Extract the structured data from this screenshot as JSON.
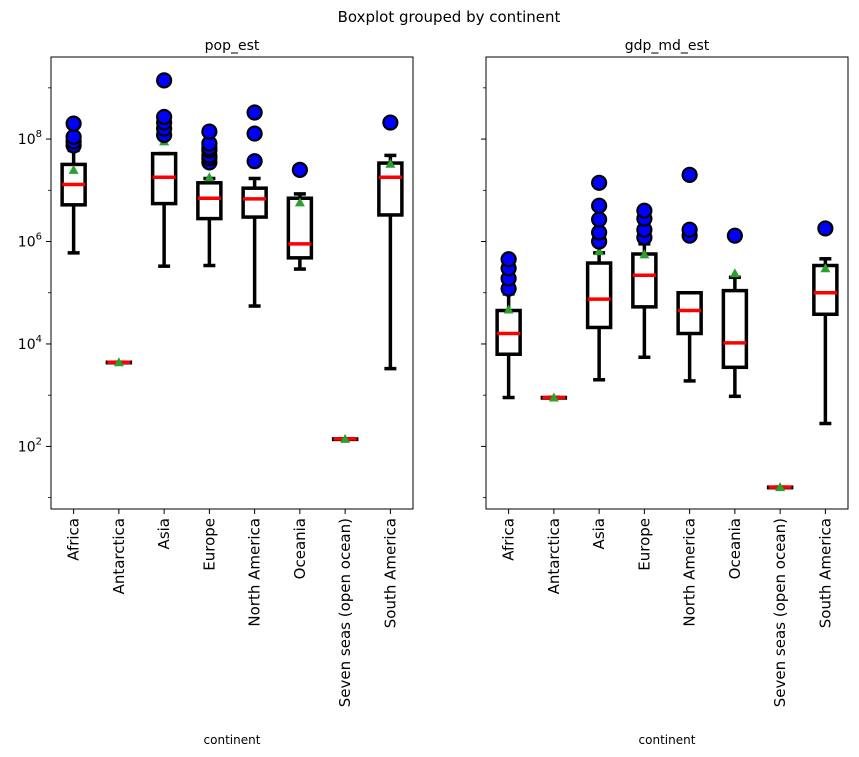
{
  "figure": {
    "suptitle": "Boxplot grouped by continent"
  },
  "chart_data": [
    {
      "type": "boxplot",
      "title": "pop_est",
      "xlabel": "continent",
      "ylabel": "",
      "yscale": "log",
      "ylim": [
        6,
        4000000000
      ],
      "yticks": [
        100,
        10000,
        1000000,
        100000000
      ],
      "ytick_labels": [
        {
          "base": "10",
          "exp": "2"
        },
        {
          "base": "10",
          "exp": "4"
        },
        {
          "base": "10",
          "exp": "6"
        },
        {
          "base": "10",
          "exp": "8"
        }
      ],
      "grid": false,
      "categories": [
        "Africa",
        "Antarctica",
        "Asia",
        "Europe",
        "North America",
        "Oceania",
        "Seven seas (open ocean)",
        "South America"
      ],
      "boxes": [
        {
          "whislo": 600000,
          "q1": 5200000,
          "med": 13000000,
          "q3": 32000000,
          "whishi": 60000000,
          "mean": 25000000,
          "fliers": [
            75000000,
            90000000,
            110000000,
            200000000
          ]
        },
        {
          "whislo": 4400,
          "q1": 4400,
          "med": 4400,
          "q3": 4400,
          "whishi": 4400,
          "mean": 4400,
          "fliers": []
        },
        {
          "whislo": 330000,
          "q1": 5500000,
          "med": 18000000,
          "q3": 52000000,
          "whishi": 52000000,
          "mean": 90000000,
          "fliers": [
            120000000,
            160000000,
            210000000,
            270000000,
            1400000000
          ]
        },
        {
          "whislo": 340000,
          "q1": 2800000,
          "med": 7000000,
          "q3": 14000000,
          "whishi": 17000000,
          "mean": 18000000,
          "fliers": [
            35000000,
            42000000,
            48000000,
            60000000,
            67000000,
            82000000,
            140000000
          ]
        },
        {
          "whislo": 55000,
          "q1": 3000000,
          "med": 6800000,
          "q3": 11000000,
          "whishi": 17000000,
          "mean": 32000000,
          "fliers": [
            37000000,
            128000000,
            330000000
          ]
        },
        {
          "whislo": 290000,
          "q1": 480000,
          "med": 900000,
          "q3": 7000000,
          "whishi": 8500000,
          "mean": 5800000,
          "fliers": [
            25000000
          ]
        },
        {
          "whislo": 140,
          "q1": 140,
          "med": 140,
          "q3": 140,
          "whishi": 140,
          "mean": 140,
          "fliers": []
        },
        {
          "whislo": 3300,
          "q1": 3300000,
          "med": 18000000,
          "q3": 34000000,
          "whishi": 48000000,
          "mean": 33000000,
          "fliers": [
            210000000
          ]
        }
      ]
    },
    {
      "type": "boxplot",
      "title": "gdp_md_est",
      "xlabel": "continent",
      "ylabel": "",
      "yscale": "log",
      "ylim": [
        6,
        4000000000
      ],
      "yticks": [
        100,
        10000,
        1000000,
        100000000
      ],
      "grid": false,
      "sharey": true,
      "categories": [
        "Africa",
        "Antarctica",
        "Asia",
        "Europe",
        "North America",
        "Oceania",
        "Seven seas (open ocean)",
        "South America"
      ],
      "boxes": [
        {
          "whislo": 900,
          "q1": 6300,
          "med": 16000,
          "q3": 45000,
          "whishi": 95000,
          "mean": 47000,
          "fliers": [
            120000,
            190000,
            300000,
            450000
          ]
        },
        {
          "whislo": 900,
          "q1": 900,
          "med": 900,
          "q3": 900,
          "whishi": 900,
          "mean": 900,
          "fliers": []
        },
        {
          "whislo": 2000,
          "q1": 21000,
          "med": 75000,
          "q3": 380000,
          "whishi": 600000,
          "mean": 650000,
          "fliers": [
            1000000,
            1500000,
            2700000,
            5000000,
            14000000
          ]
        },
        {
          "whislo": 5500,
          "q1": 53000,
          "med": 220000,
          "q3": 570000,
          "whishi": 900000,
          "mean": 560000,
          "fliers": [
            1200000,
            1700000,
            2800000,
            4000000
          ]
        },
        {
          "whislo": 1900,
          "q1": 16000,
          "med": 45000,
          "q3": 100000,
          "whishi": 100000,
          "mean": 1500000,
          "fliers": [
            1300000,
            1700000,
            20000000
          ]
        },
        {
          "whislo": 950,
          "q1": 3500,
          "med": 10500,
          "q3": 110000,
          "whishi": 200000,
          "mean": 240000,
          "fliers": [
            1300000
          ]
        },
        {
          "whislo": 16,
          "q1": 16,
          "med": 16,
          "q3": 16,
          "whishi": 16,
          "mean": 16,
          "fliers": []
        },
        {
          "whislo": 280,
          "q1": 38000,
          "med": 100000,
          "q3": 340000,
          "whishi": 460000,
          "mean": 300000,
          "fliers": [
            1800000
          ]
        }
      ]
    }
  ],
  "style": {
    "box_color": "#000000",
    "median_color": "#ff0000",
    "mean_marker_color": "#2ca02c",
    "flier_fill": "#0000ff",
    "flier_edge": "#000000"
  }
}
